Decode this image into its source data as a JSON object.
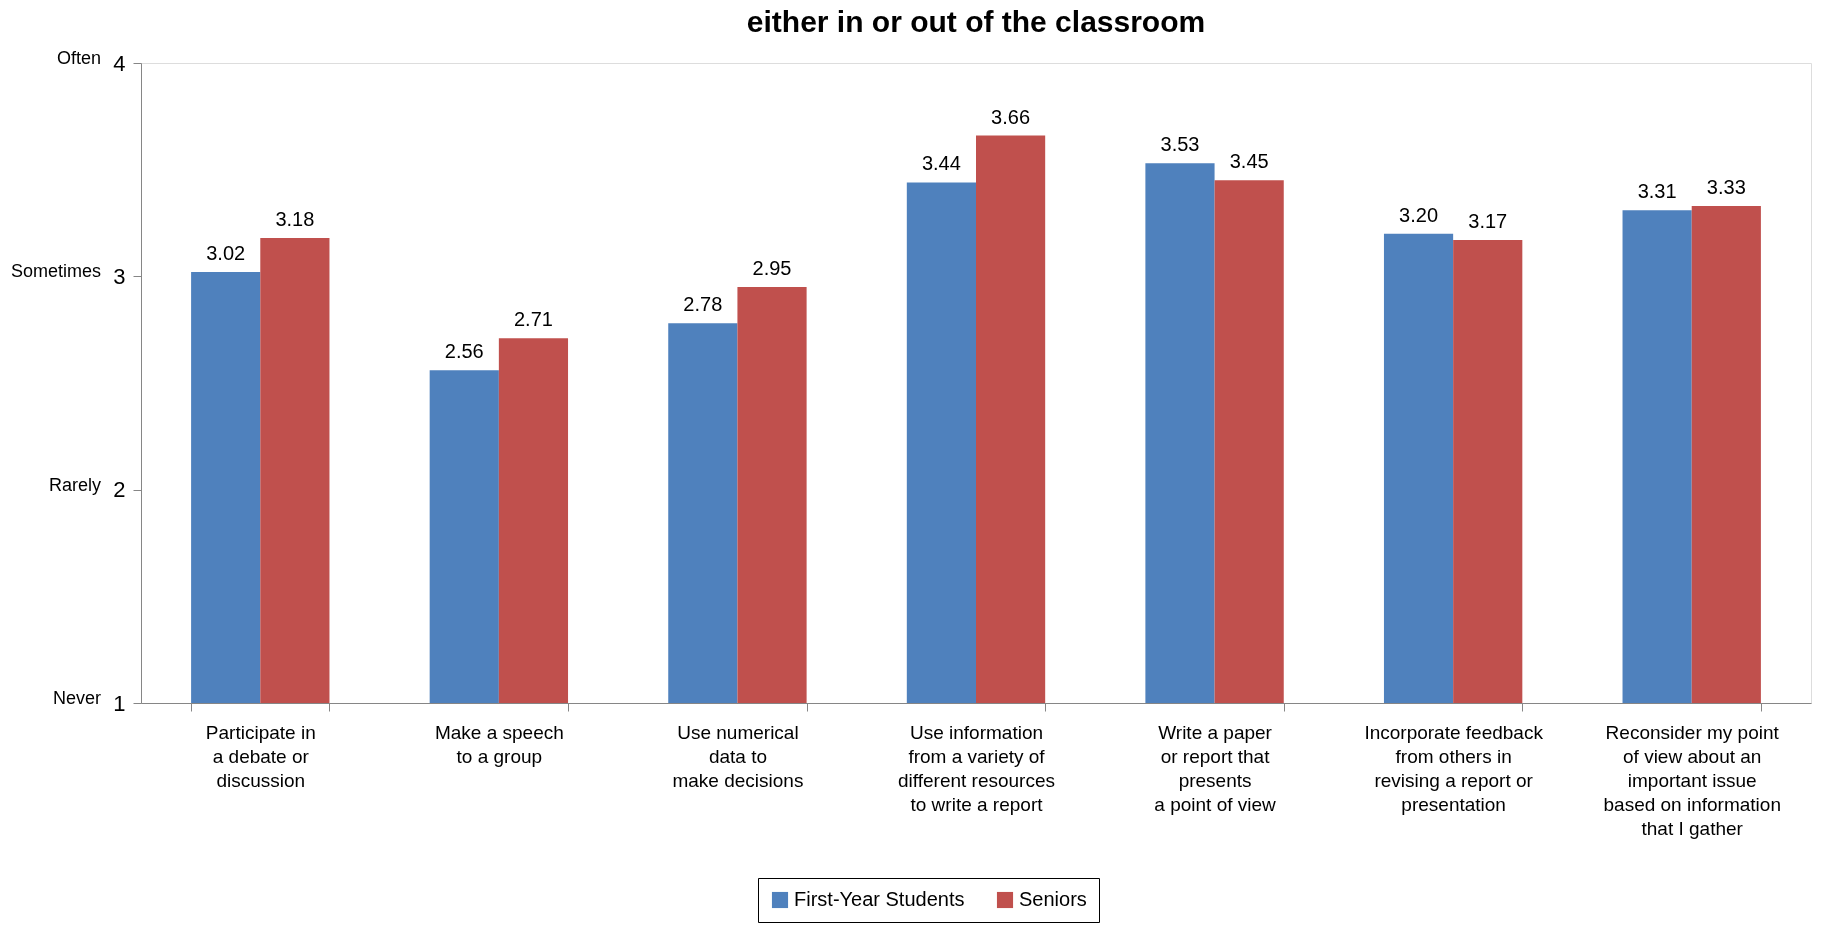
{
  "chart_data": {
    "type": "bar",
    "title": "either in or out of the classroom",
    "categories": [
      "Participate in\na debate or\ndiscussion",
      "Make a speech\nto a group",
      "Use numerical\ndata to\nmake decisions",
      "Use information\nfrom a variety of\ndifferent resources\nto write a report",
      "Write a paper\nor report that\npresents\na point of view",
      "Incorporate feedback\nfrom others in\nrevising a report or\npresentation",
      "Reconsider my point\nof view about an\nimportant issue\nbased on information\nthat I gather"
    ],
    "series": [
      {
        "name": "First-Year Students",
        "color": "#4f81bd",
        "values": [
          3.02,
          2.56,
          2.78,
          3.44,
          3.53,
          3.2,
          3.31
        ],
        "value_labels": [
          "3.02",
          "2.56",
          "2.78",
          "3.44",
          "3.53",
          "3.20",
          "3.31"
        ]
      },
      {
        "name": "Seniors",
        "color": "#c0504d",
        "values": [
          3.18,
          2.71,
          2.95,
          3.66,
          3.45,
          3.17,
          3.33
        ],
        "value_labels": [
          "3.18",
          "2.71",
          "2.95",
          "3.66",
          "3.45",
          "3.17",
          "3.33"
        ]
      }
    ],
    "ylim": [
      1,
      4
    ],
    "yticks": [
      1,
      2,
      3,
      4
    ],
    "annotations": [
      "Never",
      "Rarely",
      "Sometimes",
      "Often"
    ],
    "legend": "bottom"
  }
}
